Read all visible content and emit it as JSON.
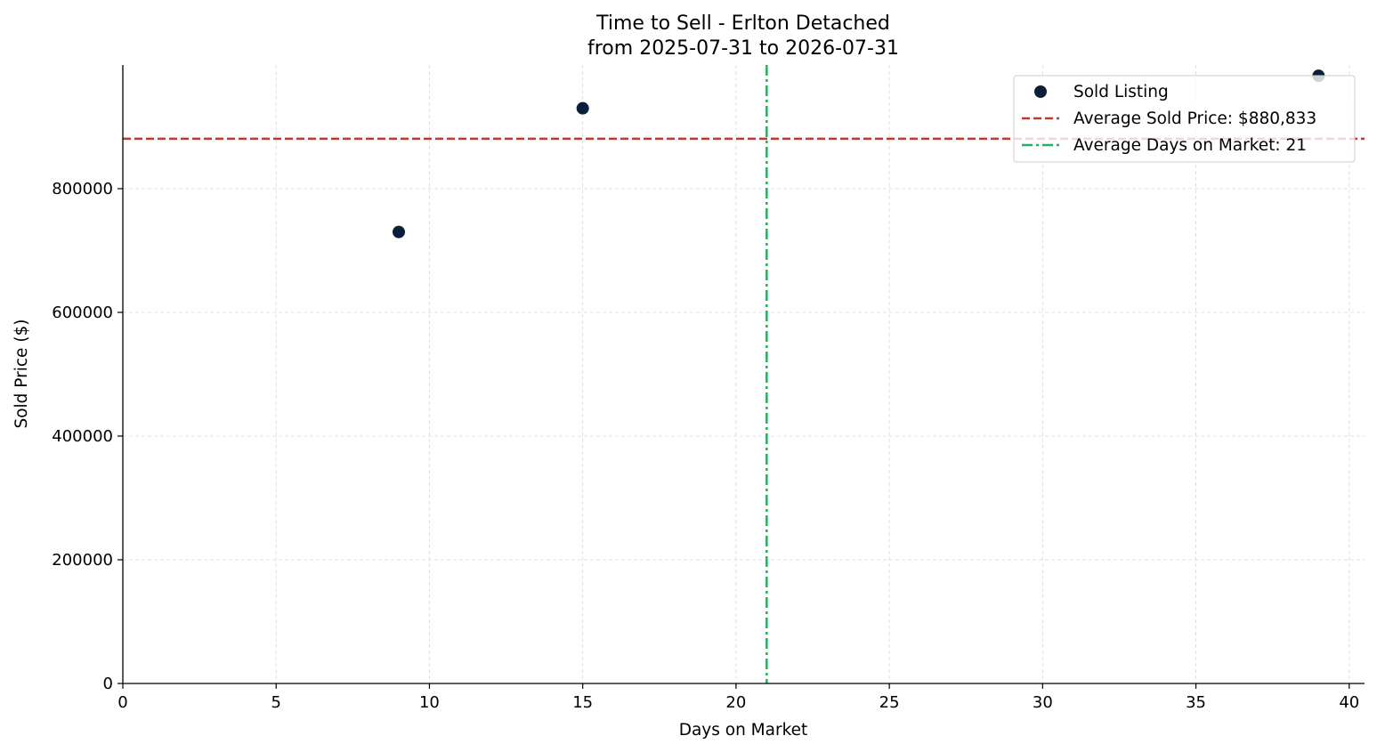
{
  "chart_data": {
    "type": "scatter",
    "title": "Time to Sell - Erlton Detached",
    "subtitle": "from 2025-07-31 to 2026-07-31",
    "xlabel": "Days on Market",
    "ylabel": "Sold Price ($)",
    "xlim": [
      0,
      40.5
    ],
    "ylim": [
      0,
      1000000
    ],
    "x_ticks": [
      0,
      5,
      10,
      15,
      20,
      25,
      30,
      35,
      40
    ],
    "y_ticks": [
      0,
      200000,
      400000,
      600000,
      800000
    ],
    "x_tick_labels": [
      "0",
      "5",
      "10",
      "15",
      "20",
      "25",
      "30",
      "35",
      "40"
    ],
    "y_tick_labels": [
      "0",
      "200000",
      "400000",
      "600000",
      "800000"
    ],
    "grid": true,
    "legend_position": "top-right",
    "series": [
      {
        "name": "Sold Listing",
        "color": "#0b1f3a",
        "points": [
          {
            "x": 9,
            "y": 730000
          },
          {
            "x": 15,
            "y": 930000
          },
          {
            "x": 39,
            "y": 982500
          }
        ]
      }
    ],
    "reference_lines": [
      {
        "name": "Average Sold Price: $880,833",
        "orientation": "horizontal",
        "value": 880833,
        "color": "#c0392b",
        "style": "dashed"
      },
      {
        "name": "Average Days on Market: 21",
        "orientation": "vertical",
        "value": 21,
        "color": "#27ae60",
        "style": "dashdot"
      }
    ]
  }
}
